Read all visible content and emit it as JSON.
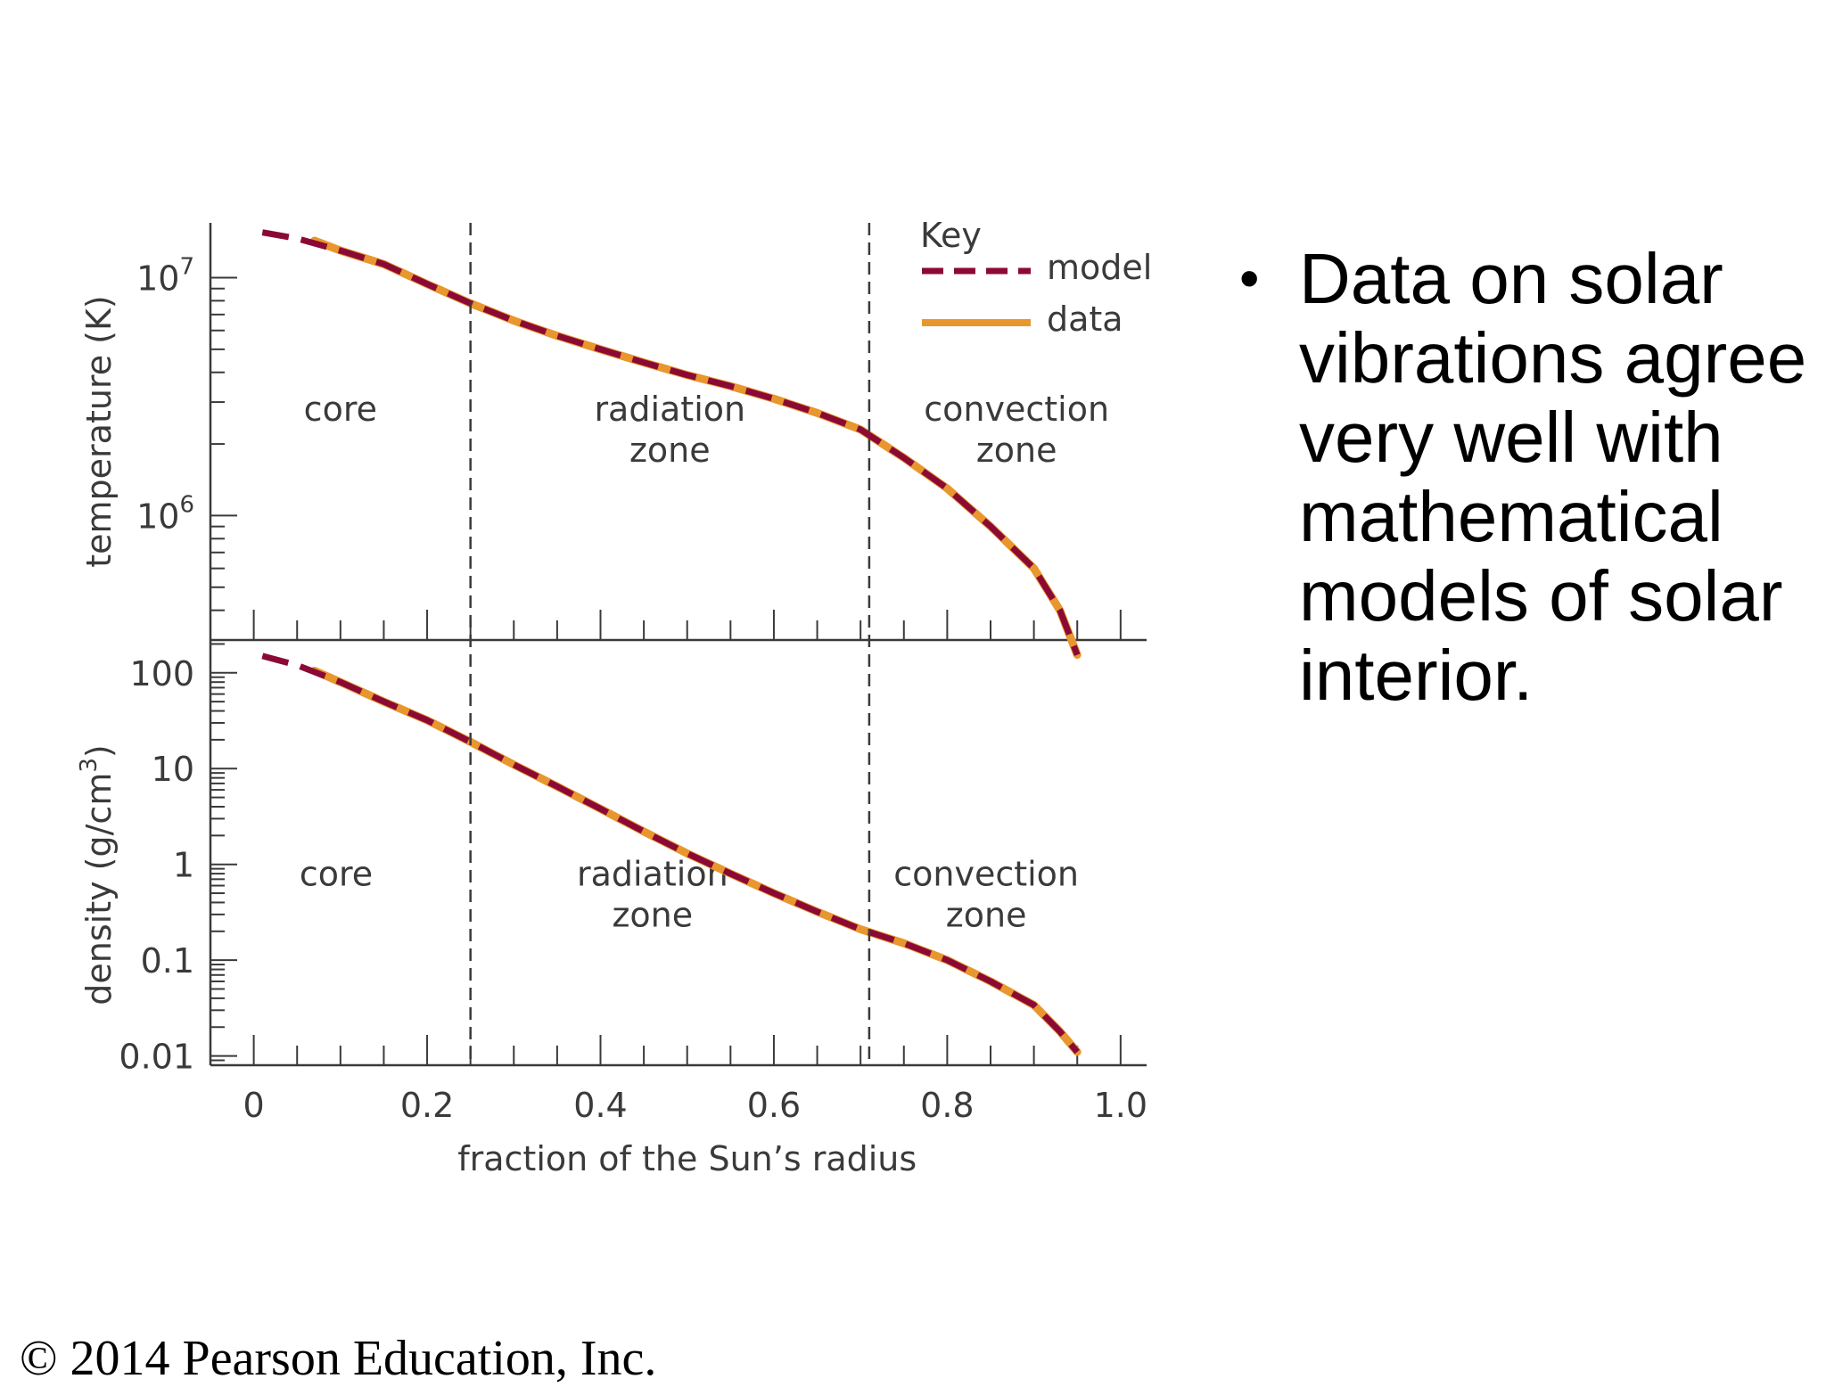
{
  "slide": {
    "bullet_symbol": "•",
    "bullet": "Data on solar vibrations agree very well with mathematical models of solar interior.",
    "footer": "© 2014 Pearson Education, Inc."
  },
  "colors": {
    "model": "#8b0a35",
    "data": "#e8972e",
    "axis": "#3a3a3a",
    "zone_line": "#3a3a3a"
  },
  "chart_data": [
    {
      "type": "line",
      "panel": "temperature",
      "ylabel": "temperature (K)",
      "yscale": "log",
      "ylim": [
        300000,
        17000000
      ],
      "y_tick_labels": [
        {
          "base": "10",
          "exp": "7",
          "value": 10000000
        },
        {
          "base": "10",
          "exp": "6",
          "value": 1000000
        }
      ],
      "xlim": [
        -0.05,
        1.03
      ],
      "zone_labels": [
        {
          "lines": [
            "core"
          ],
          "x": 0.1,
          "y": 2500000
        },
        {
          "lines": [
            "radiation",
            "zone"
          ],
          "x": 0.48,
          "y": 2500000
        },
        {
          "lines": [
            "convection",
            "zone"
          ],
          "x": 0.88,
          "y": 2500000
        }
      ],
      "key": {
        "title": "Key",
        "model": "model",
        "data": "data"
      },
      "series": [
        {
          "name": "model",
          "style": "dashed",
          "x": [
            0.01,
            0.05,
            0.1,
            0.15,
            0.2,
            0.25,
            0.3,
            0.35,
            0.4,
            0.45,
            0.5,
            0.55,
            0.6,
            0.65,
            0.7,
            0.75,
            0.8,
            0.85,
            0.9,
            0.93,
            0.95
          ],
          "y": [
            15500000,
            14600000,
            13000000,
            11400000,
            9400000,
            7800000,
            6600000,
            5700000,
            5000000,
            4400000,
            3900000,
            3500000,
            3100000,
            2700000,
            2300000,
            1750000,
            1300000,
            900000,
            600000,
            400000,
            260000
          ]
        },
        {
          "name": "data",
          "style": "solid",
          "x": [
            0.07,
            0.1,
            0.15,
            0.2,
            0.25,
            0.3,
            0.35,
            0.4,
            0.45,
            0.5,
            0.55,
            0.6,
            0.65,
            0.7,
            0.75,
            0.8,
            0.85,
            0.9,
            0.93,
            0.95
          ],
          "y": [
            14300000,
            13000000,
            11400000,
            9400000,
            7800000,
            6600000,
            5700000,
            5000000,
            4400000,
            3900000,
            3500000,
            3100000,
            2700000,
            2300000,
            1750000,
            1300000,
            900000,
            600000,
            400000,
            260000
          ]
        }
      ]
    },
    {
      "type": "line",
      "panel": "density",
      "ylabel": "density (g/cm",
      "ylabel_sup": "3",
      "ylabel_end": ")",
      "yscale": "log",
      "ylim": [
        0.008,
        220
      ],
      "y_tick_labels": [
        {
          "text": "100",
          "value": 100
        },
        {
          "text": "10",
          "value": 10
        },
        {
          "text": "1",
          "value": 1
        },
        {
          "text": "0.1",
          "value": 0.1
        },
        {
          "text": "0.01",
          "value": 0.01
        }
      ],
      "xlim": [
        -0.05,
        1.03
      ],
      "x_tick_labels": [
        {
          "text": "0",
          "value": 0
        },
        {
          "text": "0.2",
          "value": 0.2
        },
        {
          "text": "0.4",
          "value": 0.4
        },
        {
          "text": "0.6",
          "value": 0.6
        },
        {
          "text": "0.8",
          "value": 0.8
        },
        {
          "text": "1.0",
          "value": 1.0
        }
      ],
      "xlabel": "fraction of the Sun’s radius",
      "zone_labels": [
        {
          "lines": [
            "core"
          ],
          "x": 0.095,
          "y": 0.6
        },
        {
          "lines": [
            "radiation",
            "zone"
          ],
          "x": 0.46,
          "y": 0.6
        },
        {
          "lines": [
            "convection",
            "zone"
          ],
          "x": 0.845,
          "y": 0.6
        }
      ],
      "zone_boundaries": [
        0.25,
        0.71
      ],
      "series": [
        {
          "name": "model",
          "style": "dashed",
          "x": [
            0.01,
            0.05,
            0.1,
            0.15,
            0.2,
            0.25,
            0.3,
            0.35,
            0.4,
            0.45,
            0.5,
            0.55,
            0.6,
            0.65,
            0.7,
            0.75,
            0.8,
            0.85,
            0.9,
            0.93,
            0.95
          ],
          "y": [
            150,
            120,
            80,
            50,
            32,
            19,
            11,
            6.5,
            3.8,
            2.2,
            1.3,
            0.8,
            0.5,
            0.32,
            0.21,
            0.15,
            0.1,
            0.06,
            0.034,
            0.018,
            0.011
          ]
        },
        {
          "name": "data",
          "style": "solid",
          "x": [
            0.07,
            0.1,
            0.15,
            0.2,
            0.25,
            0.3,
            0.35,
            0.4,
            0.45,
            0.5,
            0.55,
            0.6,
            0.65,
            0.7,
            0.75,
            0.8,
            0.85,
            0.9,
            0.93,
            0.95
          ],
          "y": [
            105,
            80,
            50,
            32,
            19,
            11,
            6.5,
            3.8,
            2.2,
            1.3,
            0.8,
            0.5,
            0.32,
            0.21,
            0.15,
            0.1,
            0.06,
            0.034,
            0.018,
            0.011
          ]
        }
      ]
    }
  ]
}
